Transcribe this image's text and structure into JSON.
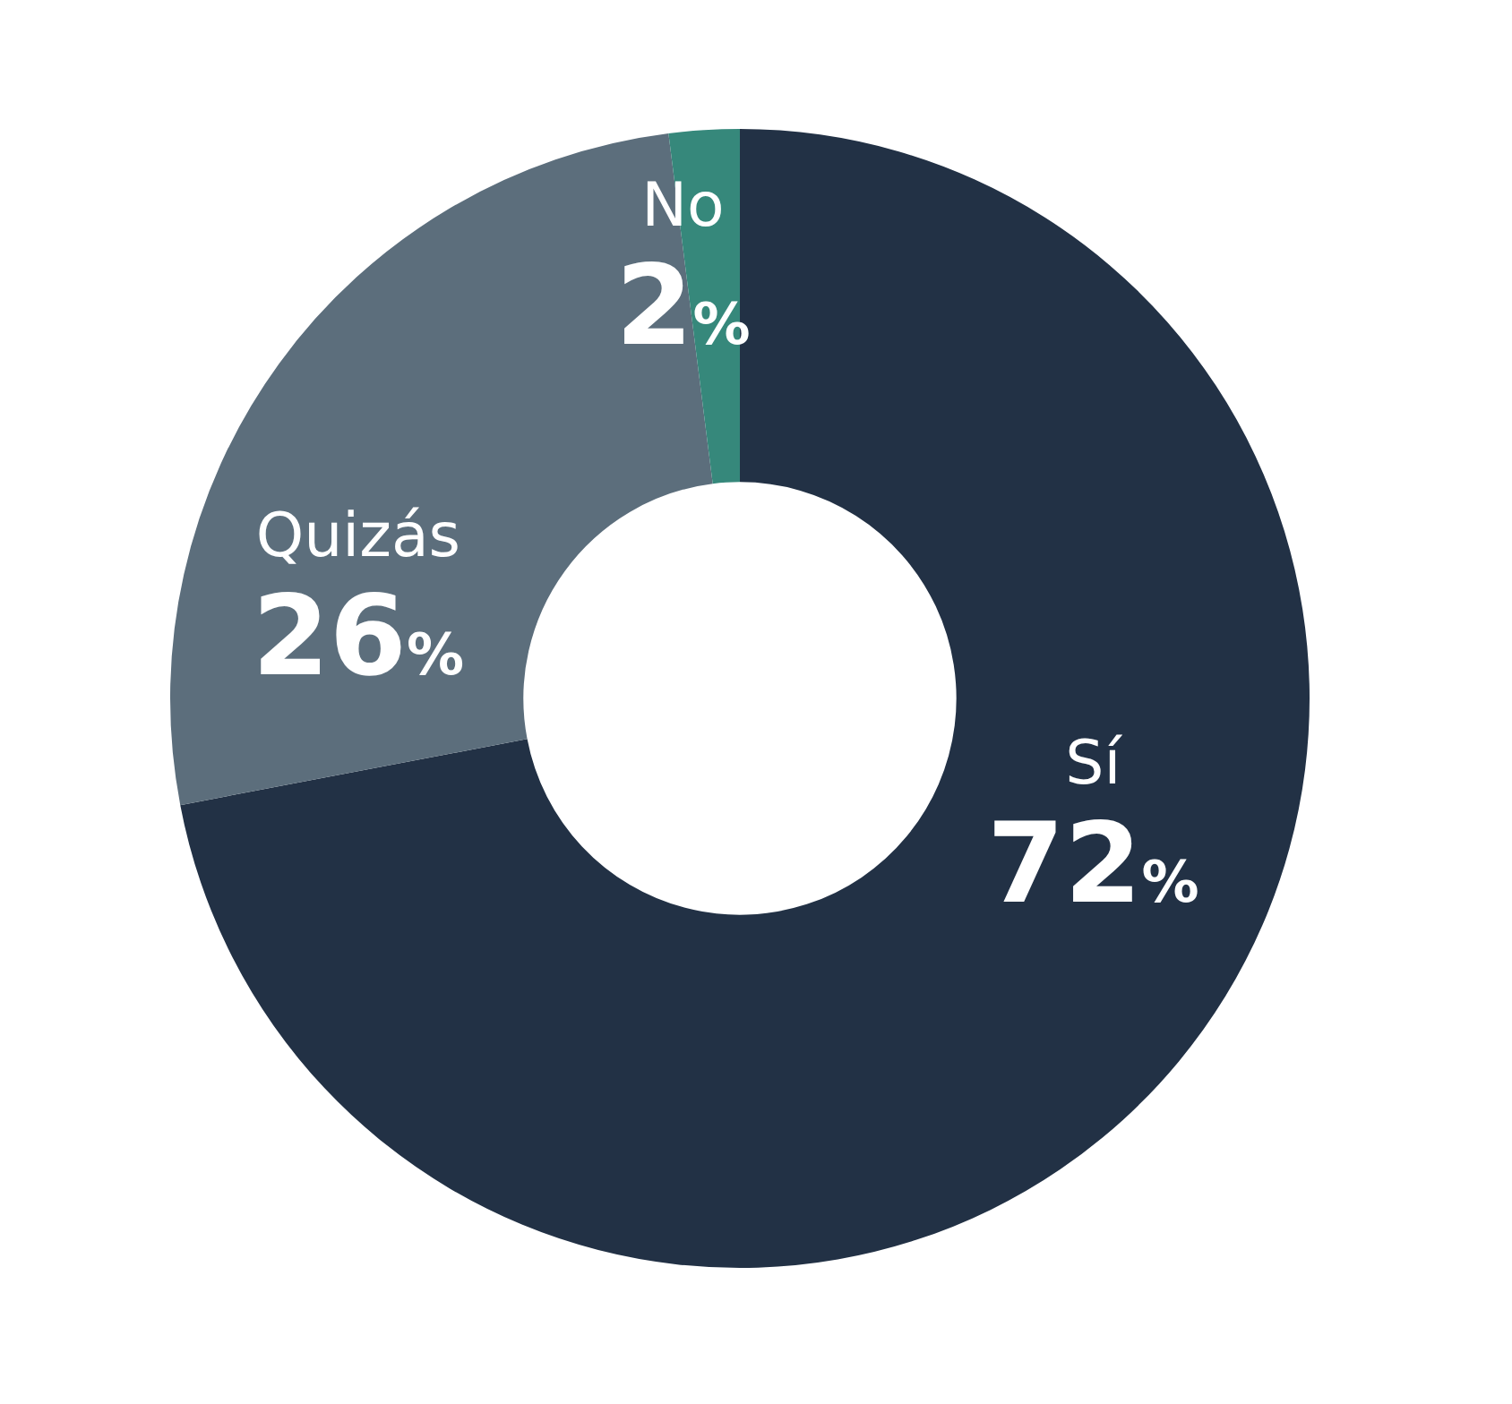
{
  "chart_data": {
    "type": "donut",
    "categories": [
      "Sí",
      "Quizás",
      "No"
    ],
    "values": [
      72,
      26,
      2
    ],
    "value_labels": [
      "72%",
      "26%",
      "2%"
    ],
    "colors": [
      "#223145",
      "#5c6e7c",
      "#36887b"
    ],
    "legend": false
  }
}
